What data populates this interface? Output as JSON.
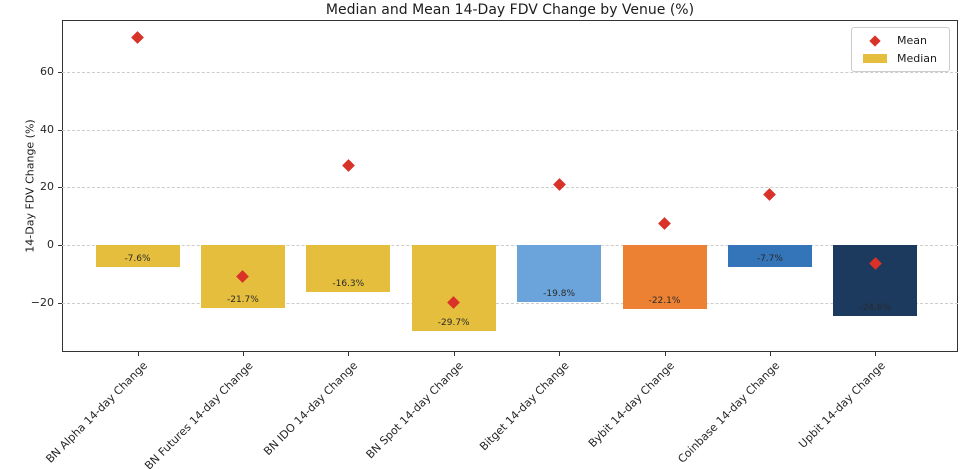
{
  "chart_data": {
    "type": "bar",
    "title": "Median and Mean 14-Day FDV Change by Venue (%)",
    "xlabel": "",
    "ylabel": "14-Day FDV Change (%)",
    "categories": [
      "BN Alpha 14-day Change",
      "BN Futures 14-day Change",
      "BN IDO 14-day Change",
      "BN Spot 14-day Change",
      "Bitget 14-day Change",
      "Bybit 14-day Change",
      "Coinbase 14-day Change",
      "Upbit 14-day Change"
    ],
    "series": [
      {
        "name": "Median",
        "type": "bar",
        "values": [
          -7.6,
          -21.7,
          -16.3,
          -29.7,
          -19.8,
          -22.1,
          -7.7,
          -24.6
        ],
        "labels": [
          "-7.6%",
          "-21.7%",
          "-16.3%",
          "-29.7%",
          "-19.8%",
          "-22.1%",
          "-7.7%",
          "-24.6%"
        ],
        "bar_colors": [
          "#E4BE3C",
          "#E4BE3C",
          "#E4BE3C",
          "#E4BE3C",
          "#6BA4DA",
          "#ED8133",
          "#3474B8",
          "#1C3A5E"
        ]
      },
      {
        "name": "Mean",
        "type": "scatter",
        "marker": "diamond",
        "values": [
          72,
          -11,
          27.5,
          -20,
          21,
          7.6,
          17.4,
          -6.2
        ],
        "color": "#D93228"
      }
    ],
    "yticks": [
      60,
      40,
      20,
      0,
      -20
    ],
    "ytick_labels": [
      "60",
      "40",
      "20",
      "0",
      "−20"
    ],
    "ylim": [
      -37,
      78
    ],
    "grid": "horizontal dashed",
    "grid_color": "#cdcdcd",
    "spine_color": "#333333",
    "legend": {
      "position": "upper right",
      "items": [
        {
          "label": "Mean",
          "swatch": "diamond",
          "color": "#D93228"
        },
        {
          "label": "Median",
          "swatch": "rect",
          "color": "#E4BE3C"
        }
      ]
    }
  }
}
